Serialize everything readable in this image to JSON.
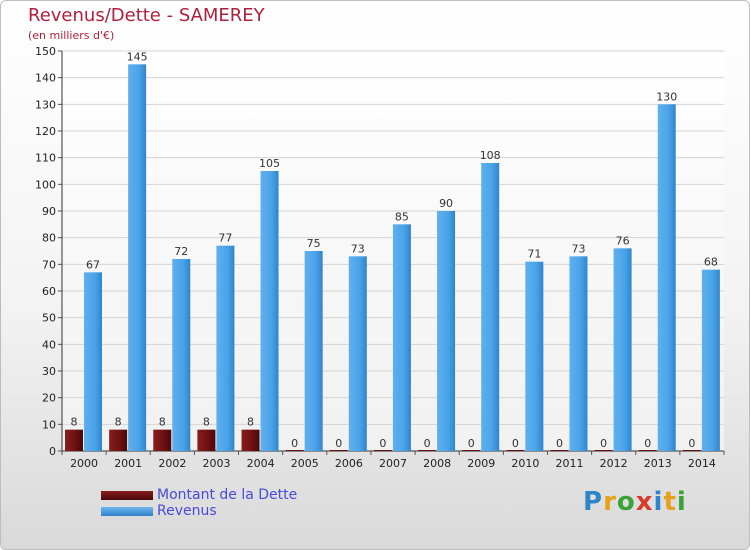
{
  "chart_data": {
    "type": "bar",
    "title": "Revenus/Dette - SAMEREY",
    "subtitle": "(en milliers d'€)",
    "categories": [
      "2000",
      "2001",
      "2002",
      "2003",
      "2004",
      "2005",
      "2006",
      "2007",
      "2008",
      "2009",
      "2010",
      "2011",
      "2012",
      "2013",
      "2014"
    ],
    "series": [
      {
        "name": "Montant de la Dette",
        "color": "#6b1010",
        "values": [
          8,
          8,
          8,
          8,
          8,
          0,
          0,
          0,
          0,
          0,
          0,
          0,
          0,
          0,
          0
        ]
      },
      {
        "name": "Revenus",
        "color": "#4aa3e8",
        "values": [
          67,
          145,
          72,
          77,
          105,
          75,
          73,
          85,
          90,
          108,
          71,
          73,
          76,
          130,
          68
        ]
      }
    ],
    "ylim": [
      0,
      150
    ],
    "yticks": [
      0,
      10,
      20,
      30,
      40,
      50,
      60,
      70,
      80,
      90,
      100,
      110,
      120,
      130,
      140,
      150
    ],
    "grid": true,
    "legend": "bottom-left"
  },
  "logo": {
    "letters": [
      "P",
      "r",
      "o",
      "x",
      "i",
      "t",
      "i"
    ]
  }
}
